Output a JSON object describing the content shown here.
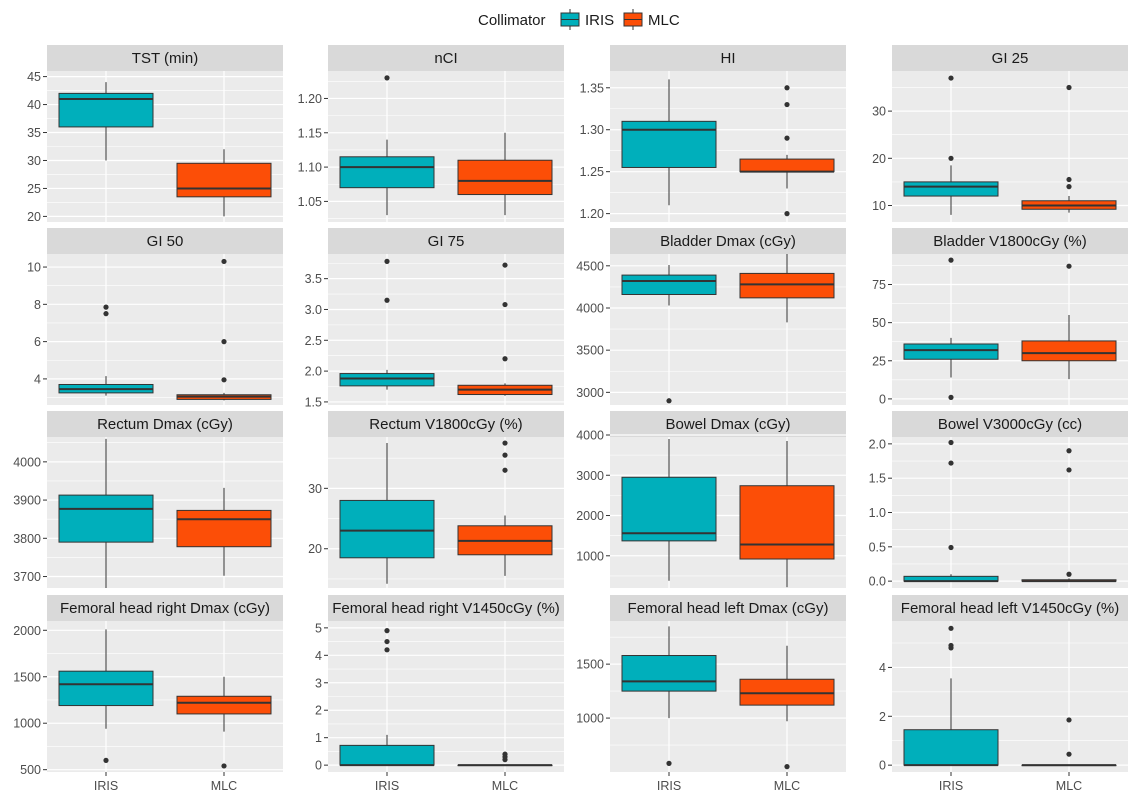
{
  "colors": {
    "IRIS": "#00AFBB",
    "MLC": "#FC4E07",
    "panel_bg": "#EBEBEB",
    "strip_bg": "#D9D9D9",
    "grid": "#FFFFFF",
    "line": "#333333"
  },
  "legend": {
    "title": "Collimator",
    "items": [
      "IRIS",
      "MLC"
    ],
    "placement": "top-center"
  },
  "chart_data": [
    {
      "type": "boxplot",
      "title": "TST (min)",
      "categories": [
        "IRIS",
        "MLC"
      ],
      "ylim": [
        19,
        46
      ],
      "yticks": [
        20,
        25,
        30,
        35,
        40,
        45
      ],
      "ytick_labels": [
        "20",
        "25",
        "30",
        "35",
        "40",
        "45"
      ],
      "series": [
        {
          "name": "IRIS",
          "min": 30,
          "q1": 36,
          "median": 41,
          "q3": 42,
          "max": 44,
          "outliers": []
        },
        {
          "name": "MLC",
          "min": 20,
          "q1": 23.5,
          "median": 25,
          "q3": 29.5,
          "max": 32,
          "outliers": []
        }
      ]
    },
    {
      "type": "boxplot",
      "title": "nCI",
      "categories": [
        "IRIS",
        "MLC"
      ],
      "ylim": [
        1.02,
        1.24
      ],
      "yticks": [
        1.05,
        1.1,
        1.15,
        1.2
      ],
      "ytick_labels": [
        "1.05",
        "1.10",
        "1.15",
        "1.20"
      ],
      "series": [
        {
          "name": "IRIS",
          "min": 1.03,
          "q1": 1.07,
          "median": 1.1,
          "q3": 1.115,
          "max": 1.14,
          "outliers": [
            1.23
          ]
        },
        {
          "name": "MLC",
          "min": 1.03,
          "q1": 1.06,
          "median": 1.08,
          "q3": 1.11,
          "max": 1.15,
          "outliers": []
        }
      ]
    },
    {
      "type": "boxplot",
      "title": "HI",
      "categories": [
        "IRIS",
        "MLC"
      ],
      "ylim": [
        1.19,
        1.37
      ],
      "yticks": [
        1.2,
        1.25,
        1.3,
        1.35
      ],
      "ytick_labels": [
        "1.20",
        "1.25",
        "1.30",
        "1.35"
      ],
      "series": [
        {
          "name": "IRIS",
          "min": 1.21,
          "q1": 1.255,
          "median": 1.3,
          "q3": 1.31,
          "max": 1.36,
          "outliers": []
        },
        {
          "name": "MLC",
          "min": 1.23,
          "q1": 1.25,
          "median": 1.25,
          "q3": 1.265,
          "max": 1.27,
          "outliers": [
            1.35,
            1.33,
            1.29,
            1.2
          ]
        }
      ]
    },
    {
      "type": "boxplot",
      "title": "GI 25",
      "categories": [
        "IRIS",
        "MLC"
      ],
      "ylim": [
        6.5,
        38.5
      ],
      "yticks": [
        10,
        20,
        30
      ],
      "ytick_labels": [
        "10",
        "20",
        "30"
      ],
      "series": [
        {
          "name": "IRIS",
          "min": 8,
          "q1": 12,
          "median": 14,
          "q3": 15,
          "max": 18.5,
          "outliers": [
            20,
            37
          ]
        },
        {
          "name": "MLC",
          "min": 8.5,
          "q1": 9.2,
          "median": 10,
          "q3": 11,
          "max": 12,
          "outliers": [
            14,
            15.5,
            35
          ]
        }
      ]
    },
    {
      "type": "boxplot",
      "title": "GI 50",
      "categories": [
        "IRIS",
        "MLC"
      ],
      "ylim": [
        2.6,
        10.7
      ],
      "yticks": [
        4,
        6,
        8,
        10
      ],
      "ytick_labels": [
        "4",
        "6",
        "8",
        "10"
      ],
      "series": [
        {
          "name": "IRIS",
          "min": 3.1,
          "q1": 3.25,
          "median": 3.45,
          "q3": 3.7,
          "max": 4.15,
          "outliers": [
            7.5,
            7.85
          ]
        },
        {
          "name": "MLC",
          "min": 2.85,
          "q1": 2.9,
          "median": 3.05,
          "q3": 3.15,
          "max": 3.25,
          "outliers": [
            3.95,
            6.0,
            10.3
          ]
        }
      ]
    },
    {
      "type": "boxplot",
      "title": "GI 75",
      "categories": [
        "IRIS",
        "MLC"
      ],
      "ylim": [
        1.45,
        3.9
      ],
      "yticks": [
        1.5,
        2.0,
        2.5,
        3.0,
        3.5
      ],
      "ytick_labels": [
        "1.5",
        "2.0",
        "2.5",
        "3.0",
        "3.5"
      ],
      "series": [
        {
          "name": "IRIS",
          "min": 1.7,
          "q1": 1.76,
          "median": 1.88,
          "q3": 1.96,
          "max": 2.02,
          "outliers": [
            3.15,
            3.78
          ]
        },
        {
          "name": "MLC",
          "min": 1.6,
          "q1": 1.62,
          "median": 1.7,
          "q3": 1.77,
          "max": 1.8,
          "outliers": [
            2.2,
            3.08,
            3.72
          ]
        }
      ]
    },
    {
      "type": "boxplot",
      "title": "Bladder Dmax (cGy)",
      "categories": [
        "IRIS",
        "MLC"
      ],
      "ylim": [
        2850,
        4640
      ],
      "yticks": [
        3000,
        3500,
        4000,
        4500
      ],
      "ytick_labels": [
        "3000",
        "3500",
        "4000",
        "4500"
      ],
      "series": [
        {
          "name": "IRIS",
          "min": 4030,
          "q1": 4160,
          "median": 4320,
          "q3": 4390,
          "max": 4510,
          "outliers": [
            2900
          ]
        },
        {
          "name": "MLC",
          "min": 3830,
          "q1": 4120,
          "median": 4280,
          "q3": 4410,
          "max": 4640,
          "outliers": []
        }
      ]
    },
    {
      "type": "boxplot",
      "title": "Bladder V1800cGy (%)",
      "categories": [
        "IRIS",
        "MLC"
      ],
      "ylim": [
        -4,
        95
      ],
      "yticks": [
        0,
        25,
        50,
        75
      ],
      "ytick_labels": [
        "0",
        "25",
        "50",
        "75"
      ],
      "series": [
        {
          "name": "IRIS",
          "min": 14,
          "q1": 26,
          "median": 32,
          "q3": 36,
          "max": 40,
          "outliers": [
            1,
            91
          ]
        },
        {
          "name": "MLC",
          "min": 13,
          "q1": 25,
          "median": 30,
          "q3": 38,
          "max": 55,
          "outliers": [
            87
          ]
        }
      ]
    },
    {
      "type": "boxplot",
      "title": "Rectum Dmax (cGy)",
      "categories": [
        "IRIS",
        "MLC"
      ],
      "ylim": [
        3670,
        4065
      ],
      "yticks": [
        3700,
        3800,
        3900,
        4000
      ],
      "ytick_labels": [
        "3700",
        "3800",
        "3900",
        "4000"
      ],
      "series": [
        {
          "name": "IRIS",
          "min": 3670,
          "q1": 3790,
          "median": 3877,
          "q3": 3913,
          "max": 4060,
          "outliers": []
        },
        {
          "name": "MLC",
          "min": 3702,
          "q1": 3778,
          "median": 3850,
          "q3": 3873,
          "max": 3932,
          "outliers": []
        }
      ]
    },
    {
      "type": "boxplot",
      "title": "Rectum V1800cGy (%)",
      "categories": [
        "IRIS",
        "MLC"
      ],
      "ylim": [
        13.5,
        38.5
      ],
      "yticks": [
        20,
        30
      ],
      "ytick_labels": [
        "20",
        "30"
      ],
      "series": [
        {
          "name": "IRIS",
          "min": 14.2,
          "q1": 18.5,
          "median": 23,
          "q3": 28,
          "max": 37.5,
          "outliers": []
        },
        {
          "name": "MLC",
          "min": 15.5,
          "q1": 19,
          "median": 21.3,
          "q3": 23.8,
          "max": 25.5,
          "outliers": [
            33,
            35.5,
            37.5
          ]
        }
      ]
    },
    {
      "type": "boxplot",
      "title": "Bowel Dmax (cGy)",
      "categories": [
        "IRIS",
        "MLC"
      ],
      "ylim": [
        200,
        3950
      ],
      "yticks": [
        1000,
        2000,
        3000,
        4000
      ],
      "ytick_labels": [
        "1000",
        "2000",
        "3000",
        "4000"
      ],
      "series": [
        {
          "name": "IRIS",
          "min": 380,
          "q1": 1370,
          "median": 1560,
          "q3": 2950,
          "max": 3900,
          "outliers": []
        },
        {
          "name": "MLC",
          "min": 220,
          "q1": 920,
          "median": 1280,
          "q3": 2740,
          "max": 3850,
          "outliers": []
        }
      ]
    },
    {
      "type": "boxplot",
      "title": "Bowel V3000cGy (cc)",
      "categories": [
        "IRIS",
        "MLC"
      ],
      "ylim": [
        -0.1,
        2.1
      ],
      "yticks": [
        0.0,
        0.5,
        1.0,
        1.5,
        2.0
      ],
      "ytick_labels": [
        "0.0",
        "0.5",
        "1.0",
        "1.5",
        "2.0"
      ],
      "series": [
        {
          "name": "IRIS",
          "min": 0,
          "q1": 0,
          "median": 0,
          "q3": 0.07,
          "max": 0.1,
          "outliers": [
            0.49,
            1.72,
            2.02
          ]
        },
        {
          "name": "MLC",
          "min": 0,
          "q1": 0,
          "median": 0,
          "q3": 0.02,
          "max": 0.04,
          "outliers": [
            0.1,
            1.62,
            1.9
          ]
        }
      ]
    },
    {
      "type": "boxplot",
      "title": "Femoral head right Dmax (cGy)",
      "categories": [
        "IRIS",
        "MLC"
      ],
      "ylim": [
        475,
        2100
      ],
      "yticks": [
        500,
        1000,
        1500,
        2000
      ],
      "ytick_labels": [
        "500",
        "1000",
        "1500",
        "2000"
      ],
      "series": [
        {
          "name": "IRIS",
          "min": 940,
          "q1": 1190,
          "median": 1420,
          "q3": 1560,
          "max": 2010,
          "outliers": [
            600
          ]
        },
        {
          "name": "MLC",
          "min": 910,
          "q1": 1100,
          "median": 1220,
          "q3": 1290,
          "max": 1500,
          "outliers": [
            540
          ]
        }
      ]
    },
    {
      "type": "boxplot",
      "title": "Femoral head right V1450cGy (%)",
      "categories": [
        "IRIS",
        "MLC"
      ],
      "ylim": [
        -0.25,
        5.25
      ],
      "yticks": [
        0,
        1,
        2,
        3,
        4,
        5
      ],
      "ytick_labels": [
        "0",
        "1",
        "2",
        "3",
        "4",
        "5"
      ],
      "series": [
        {
          "name": "IRIS",
          "min": 0,
          "q1": 0,
          "median": 0,
          "q3": 0.72,
          "max": 1.1,
          "outliers": [
            4.2,
            4.5,
            4.9
          ]
        },
        {
          "name": "MLC",
          "min": 0,
          "q1": 0,
          "median": 0,
          "q3": 0,
          "max": 0,
          "outliers": [
            0.2,
            0.3,
            0.4
          ]
        }
      ]
    },
    {
      "type": "boxplot",
      "title": "Femoral head left Dmax (cGy)",
      "categories": [
        "IRIS",
        "MLC"
      ],
      "ylim": [
        500,
        1900
      ],
      "yticks": [
        1000,
        1500
      ],
      "ytick_labels": [
        "1000",
        "1500"
      ],
      "series": [
        {
          "name": "IRIS",
          "min": 1000,
          "q1": 1250,
          "median": 1340,
          "q3": 1580,
          "max": 1850,
          "outliers": [
            580
          ]
        },
        {
          "name": "MLC",
          "min": 970,
          "q1": 1120,
          "median": 1230,
          "q3": 1360,
          "max": 1670,
          "outliers": [
            550
          ]
        }
      ]
    },
    {
      "type": "boxplot",
      "title": "Femoral head left V1450cGy (%)",
      "categories": [
        "IRIS",
        "MLC"
      ],
      "ylim": [
        -0.28,
        5.9
      ],
      "yticks": [
        0,
        2,
        4
      ],
      "ytick_labels": [
        "0",
        "2",
        "4"
      ],
      "series": [
        {
          "name": "IRIS",
          "min": 0,
          "q1": 0,
          "median": 0,
          "q3": 1.45,
          "max": 3.55,
          "outliers": [
            4.8,
            4.9,
            5.6
          ]
        },
        {
          "name": "MLC",
          "min": 0,
          "q1": 0,
          "median": 0,
          "q3": 0,
          "max": 0,
          "outliers": [
            0.45,
            1.85
          ]
        }
      ]
    }
  ]
}
